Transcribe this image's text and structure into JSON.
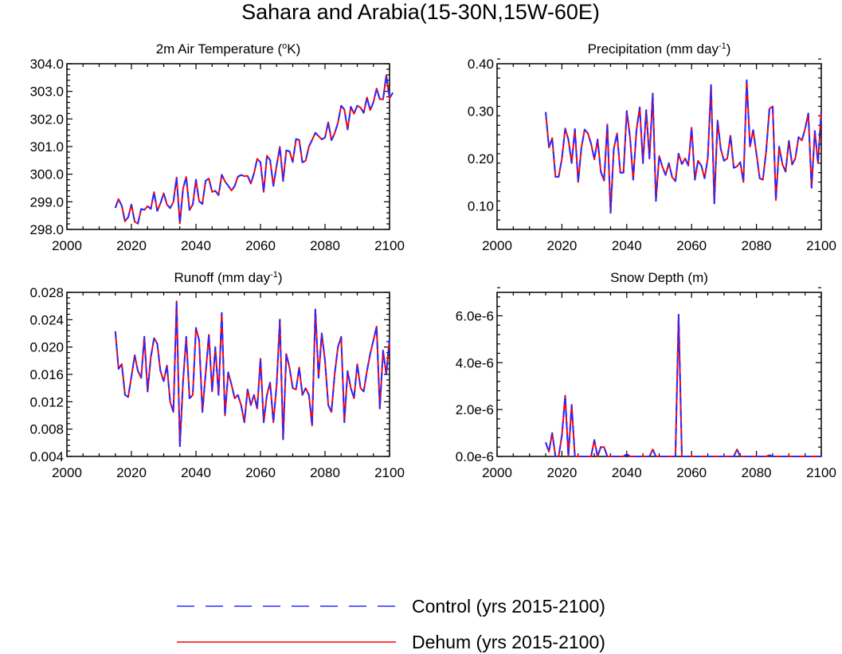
{
  "figure": {
    "title": "Sahara and Arabia(15-30N,15W-60E)"
  },
  "legend": {
    "control_label": "Control (yrs 2015-2100)",
    "dehum_label": "Dehum (yrs 2015-2100)",
    "control_color": "#2a2aff",
    "dehum_color": "#ff0000"
  },
  "chart_data": [
    {
      "type": "line",
      "title": "2m Air Temperature (",
      "title_sup": "o",
      "title_tail": "K)",
      "xlim": [
        2000,
        2100
      ],
      "xticks": [
        2000,
        2020,
        2040,
        2060,
        2080,
        2100
      ],
      "ylim": [
        298.0,
        304.0
      ],
      "yticks": [
        298.0,
        299.0,
        300.0,
        301.0,
        302.0,
        303.0,
        304.0
      ],
      "ytick_labels": [
        "298.0",
        "299.0",
        "300.0",
        "301.0",
        "302.0",
        "303.0",
        "304.0"
      ],
      "x_start": 2015,
      "series": [
        {
          "name": "Control (yrs 2015-2100)",
          "values": [
            298.78,
            299.1,
            298.85,
            298.29,
            298.44,
            298.9,
            298.28,
            298.21,
            298.74,
            298.71,
            298.84,
            298.74,
            299.35,
            298.67,
            298.94,
            299.31,
            298.9,
            298.77,
            299.0,
            299.88,
            298.22,
            299.48,
            299.9,
            298.7,
            298.9,
            299.8,
            299.02,
            298.92,
            299.76,
            299.84,
            299.36,
            299.4,
            299.24,
            299.98,
            299.74,
            299.58,
            299.41,
            299.57,
            299.91,
            299.97,
            299.93,
            299.94,
            299.66,
            300.03,
            300.56,
            300.43,
            299.36,
            300.67,
            300.51,
            299.58,
            300.32,
            300.99,
            299.75,
            300.86,
            300.83,
            300.44,
            301.27,
            301.24,
            300.43,
            300.49,
            301.0,
            301.24,
            301.5,
            301.38,
            301.26,
            301.33,
            301.88,
            301.23,
            301.48,
            301.86,
            302.48,
            302.34,
            301.62,
            302.44,
            302.19,
            302.48,
            302.41,
            302.22,
            302.78,
            302.32,
            302.61,
            303.1,
            302.72,
            302.71,
            303.58,
            302.75,
            302.95
          ]
        },
        {
          "name": "Dehum (yrs 2015-2100)",
          "values": [
            298.78,
            299.1,
            298.85,
            298.29,
            298.44,
            298.9,
            298.28,
            298.21,
            298.74,
            298.71,
            298.84,
            298.74,
            299.35,
            298.67,
            298.94,
            299.31,
            298.9,
            298.77,
            299.0,
            299.88,
            298.22,
            299.48,
            299.9,
            298.7,
            298.9,
            299.8,
            299.02,
            298.92,
            299.76,
            299.84,
            299.36,
            299.4,
            299.24,
            299.98,
            299.74,
            299.58,
            299.41,
            299.57,
            299.91,
            299.97,
            299.93,
            299.94,
            299.66,
            300.03,
            300.56,
            300.43,
            299.36,
            300.67,
            300.51,
            299.58,
            300.32,
            300.99,
            299.75,
            300.86,
            300.83,
            300.44,
            301.27,
            301.24,
            300.43,
            300.49,
            301.0,
            301.24,
            301.5,
            301.38,
            301.26,
            301.33,
            301.88,
            301.23,
            301.48,
            301.86,
            302.48,
            302.34,
            301.62,
            302.44,
            302.19,
            302.48,
            302.41,
            302.22,
            302.78,
            302.32,
            302.61,
            303.1,
            302.72,
            302.71,
            303.58,
            302.75,
            302.95
          ]
        }
      ]
    },
    {
      "type": "line",
      "title": "Precipitation (mm day",
      "title_sup": "-1",
      "title_tail": ")",
      "xlim": [
        2000,
        2100
      ],
      "xticks": [
        2000,
        2020,
        2040,
        2060,
        2080,
        2100
      ],
      "ylim": [
        0.05,
        0.4
      ],
      "yticks": [
        0.1,
        0.2,
        0.3,
        0.4
      ],
      "ytick_labels": [
        "0.10",
        "0.20",
        "0.30",
        "0.40"
      ],
      "x_start": 2015,
      "series": [
        {
          "name": "Control (yrs 2015-2100)",
          "values": [
            0.298,
            0.223,
            0.243,
            0.161,
            0.161,
            0.2,
            0.263,
            0.24,
            0.19,
            0.262,
            0.15,
            0.222,
            0.261,
            0.253,
            0.231,
            0.198,
            0.24,
            0.172,
            0.153,
            0.272,
            0.085,
            0.22,
            0.253,
            0.17,
            0.17,
            0.3,
            0.245,
            0.155,
            0.26,
            0.308,
            0.19,
            0.302,
            0.2,
            0.337,
            0.11,
            0.205,
            0.182,
            0.165,
            0.19,
            0.16,
            0.152,
            0.21,
            0.188,
            0.2,
            0.185,
            0.265,
            0.155,
            0.195,
            0.185,
            0.158,
            0.2,
            0.355,
            0.105,
            0.28,
            0.22,
            0.195,
            0.2,
            0.248,
            0.18,
            0.183,
            0.192,
            0.15,
            0.365,
            0.225,
            0.26,
            0.21,
            0.158,
            0.155,
            0.215,
            0.305,
            0.31,
            0.112,
            0.225,
            0.188,
            0.172,
            0.237,
            0.187,
            0.2,
            0.245,
            0.238,
            0.262,
            0.295,
            0.138,
            0.258,
            0.19,
            0.3
          ]
        },
        {
          "name": "Dehum (yrs 2015-2100)",
          "values": [
            0.298,
            0.223,
            0.243,
            0.161,
            0.161,
            0.2,
            0.263,
            0.24,
            0.19,
            0.262,
            0.15,
            0.222,
            0.261,
            0.253,
            0.231,
            0.198,
            0.24,
            0.172,
            0.153,
            0.272,
            0.085,
            0.22,
            0.253,
            0.17,
            0.17,
            0.3,
            0.245,
            0.155,
            0.26,
            0.308,
            0.19,
            0.302,
            0.2,
            0.337,
            0.11,
            0.205,
            0.182,
            0.165,
            0.19,
            0.16,
            0.152,
            0.21,
            0.188,
            0.2,
            0.185,
            0.265,
            0.155,
            0.195,
            0.185,
            0.158,
            0.2,
            0.355,
            0.105,
            0.28,
            0.22,
            0.195,
            0.2,
            0.248,
            0.18,
            0.183,
            0.192,
            0.15,
            0.365,
            0.225,
            0.26,
            0.21,
            0.158,
            0.155,
            0.215,
            0.305,
            0.31,
            0.112,
            0.225,
            0.188,
            0.172,
            0.237,
            0.187,
            0.2,
            0.245,
            0.238,
            0.262,
            0.295,
            0.138,
            0.258,
            0.19,
            0.3
          ]
        }
      ]
    },
    {
      "type": "line",
      "title": "Runoff (mm day",
      "title_sup": "-1",
      "title_tail": ")",
      "xlim": [
        2000,
        2100
      ],
      "xticks": [
        2000,
        2020,
        2040,
        2060,
        2080,
        2100
      ],
      "ylim": [
        0.004,
        0.028
      ],
      "yticks": [
        0.004,
        0.008,
        0.012,
        0.016,
        0.02,
        0.024,
        0.028
      ],
      "ytick_labels": [
        "0.004",
        "0.008",
        "0.012",
        "0.016",
        "0.020",
        "0.024",
        "0.028"
      ],
      "x_start": 2015,
      "series": [
        {
          "name": "Control (yrs 2015-2100)",
          "values": [
            0.0223,
            0.0168,
            0.0175,
            0.013,
            0.0127,
            0.0157,
            0.0188,
            0.0165,
            0.0155,
            0.0215,
            0.0135,
            0.0185,
            0.0213,
            0.0205,
            0.0165,
            0.015,
            0.0173,
            0.012,
            0.0105,
            0.0267,
            0.0055,
            0.015,
            0.0215,
            0.0125,
            0.013,
            0.0228,
            0.021,
            0.0105,
            0.016,
            0.0218,
            0.0135,
            0.02,
            0.013,
            0.025,
            0.01,
            0.0163,
            0.0145,
            0.0125,
            0.013,
            0.0115,
            0.009,
            0.0138,
            0.0115,
            0.013,
            0.011,
            0.0183,
            0.009,
            0.013,
            0.0148,
            0.009,
            0.0145,
            0.024,
            0.0065,
            0.019,
            0.017,
            0.014,
            0.0138,
            0.017,
            0.013,
            0.014,
            0.013,
            0.0085,
            0.0255,
            0.0155,
            0.022,
            0.018,
            0.0115,
            0.0105,
            0.016,
            0.02,
            0.0215,
            0.009,
            0.0165,
            0.014,
            0.0125,
            0.0175,
            0.014,
            0.0135,
            0.0165,
            0.019,
            0.021,
            0.023,
            0.011,
            0.0195,
            0.016,
            0.0212
          ]
        },
        {
          "name": "Dehum (yrs 2015-2100)",
          "values": [
            0.0223,
            0.0168,
            0.0175,
            0.013,
            0.0127,
            0.0157,
            0.0188,
            0.0165,
            0.0155,
            0.0215,
            0.0135,
            0.0185,
            0.0213,
            0.0205,
            0.0165,
            0.015,
            0.0173,
            0.012,
            0.0105,
            0.0267,
            0.0055,
            0.015,
            0.0215,
            0.0125,
            0.013,
            0.0228,
            0.021,
            0.0105,
            0.016,
            0.0218,
            0.0135,
            0.02,
            0.013,
            0.025,
            0.01,
            0.0163,
            0.0145,
            0.0125,
            0.013,
            0.0115,
            0.009,
            0.0138,
            0.0115,
            0.013,
            0.011,
            0.0183,
            0.009,
            0.013,
            0.0148,
            0.009,
            0.0145,
            0.024,
            0.0065,
            0.019,
            0.017,
            0.014,
            0.0138,
            0.017,
            0.013,
            0.014,
            0.013,
            0.0085,
            0.0255,
            0.0155,
            0.022,
            0.018,
            0.0115,
            0.0105,
            0.016,
            0.02,
            0.0215,
            0.009,
            0.0165,
            0.014,
            0.0125,
            0.0175,
            0.014,
            0.0135,
            0.0165,
            0.019,
            0.021,
            0.023,
            0.011,
            0.0195,
            0.016,
            0.0212
          ]
        }
      ]
    },
    {
      "type": "line",
      "title": "Snow Depth (m)",
      "title_sup": "",
      "title_tail": "",
      "xlim": [
        2000,
        2100
      ],
      "xticks": [
        2000,
        2020,
        2040,
        2060,
        2080,
        2100
      ],
      "ylim": [
        0.0,
        7e-06
      ],
      "yticks": [
        0.0,
        2e-06,
        4e-06,
        6e-06
      ],
      "ytick_labels": [
        "0.0e-6",
        "2.0e-6",
        "4.0e-6",
        "6.0e-6"
      ],
      "x_start": 2015,
      "series": [
        {
          "name": "Control (yrs 2015-2100)",
          "values": [
            6e-07,
            2e-07,
            1e-06,
            0,
            0,
            9e-07,
            2.6e-06,
            0,
            2.2e-06,
            0,
            0,
            0,
            0,
            0,
            0,
            7e-07,
            0,
            4e-07,
            4e-07,
            0,
            0,
            0,
            0,
            0,
            0,
            1e-07,
            0,
            0,
            0,
            0,
            0,
            0,
            0,
            3e-07,
            0,
            0,
            0,
            0,
            0,
            0,
            0,
            6.05e-06,
            0,
            0,
            0,
            0,
            0,
            0,
            0,
            0,
            0,
            0,
            0,
            0,
            0,
            0,
            0,
            0,
            0,
            3e-07,
            0,
            0,
            0,
            0,
            0,
            0,
            0,
            0,
            0,
            5e-08,
            0,
            0,
            0,
            0,
            0,
            0,
            0,
            0,
            0,
            0,
            0,
            0,
            0,
            0,
            0,
            0
          ]
        },
        {
          "name": "Dehum (yrs 2015-2100)",
          "values": [
            6e-07,
            2e-07,
            1e-06,
            0,
            0,
            9e-07,
            2.6e-06,
            0,
            2.2e-06,
            0,
            0,
            0,
            0,
            0,
            0,
            7e-07,
            0,
            4e-07,
            4e-07,
            0,
            0,
            0,
            0,
            0,
            0,
            1e-07,
            0,
            0,
            0,
            0,
            0,
            0,
            0,
            3e-07,
            0,
            0,
            0,
            0,
            0,
            0,
            0,
            6.05e-06,
            0,
            0,
            0,
            0,
            0,
            0,
            0,
            0,
            0,
            0,
            0,
            0,
            0,
            0,
            0,
            0,
            0,
            3e-07,
            0,
            0,
            0,
            0,
            0,
            0,
            0,
            0,
            0,
            5e-08,
            0,
            0,
            0,
            0,
            0,
            0,
            0,
            0,
            0,
            0,
            0,
            0,
            0,
            0,
            0,
            0
          ]
        }
      ]
    }
  ]
}
